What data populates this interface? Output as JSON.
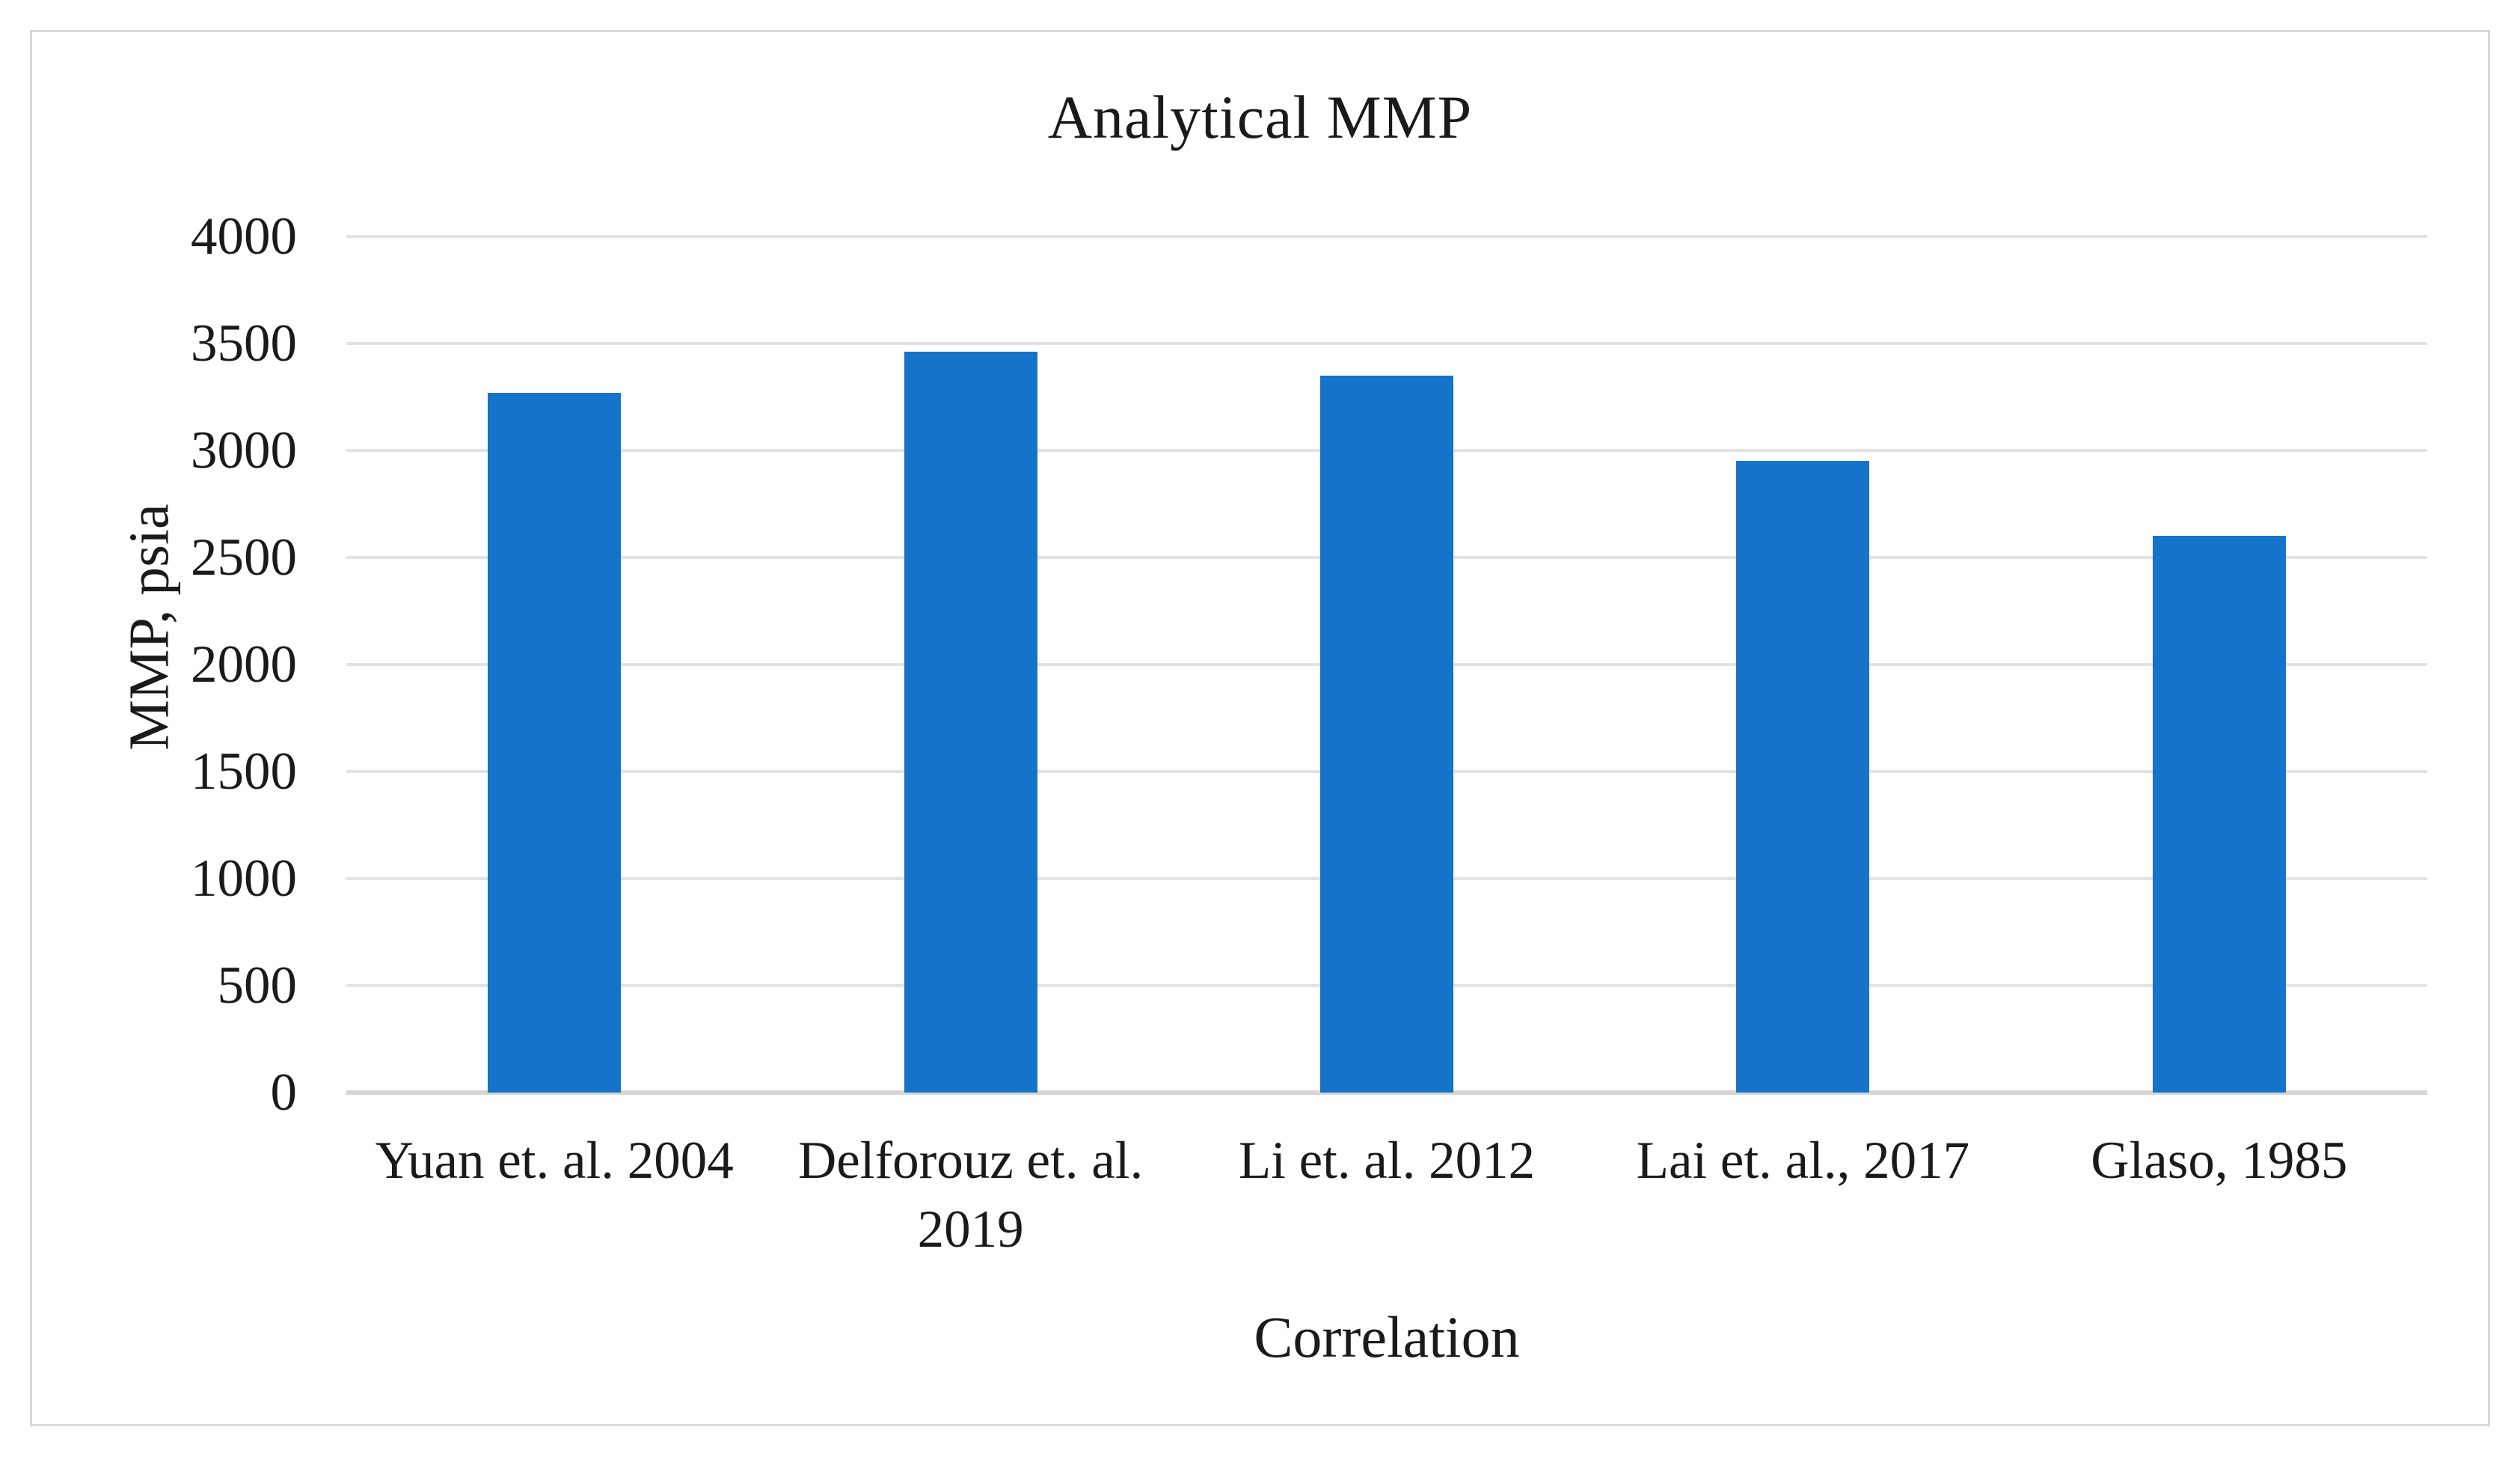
{
  "figure": {
    "background": "#ffffff",
    "border_color": "#dadada"
  },
  "chart_data": {
    "type": "bar",
    "title": "Analytical MMP",
    "categories": [
      "Yuan et. al. 2004",
      "Delforouz et. al. 2019",
      "Li et. al. 2012",
      "Lai et. al., 2017",
      "Glaso, 1985"
    ],
    "values": [
      3270,
      3460,
      3350,
      2950,
      2600
    ],
    "xlabel": "Correlation",
    "ylabel": "MMP, psia",
    "ylim": [
      0,
      4000
    ],
    "yticks": [
      0,
      500,
      1000,
      1500,
      2000,
      2500,
      3000,
      3500,
      4000
    ],
    "grid": true,
    "legend_position": "none",
    "bar_color": "#1573ca",
    "gridline_color": "#e3e3e3",
    "axis_line_color": "#d7d7d7",
    "text_color": "#1a1a1a"
  }
}
